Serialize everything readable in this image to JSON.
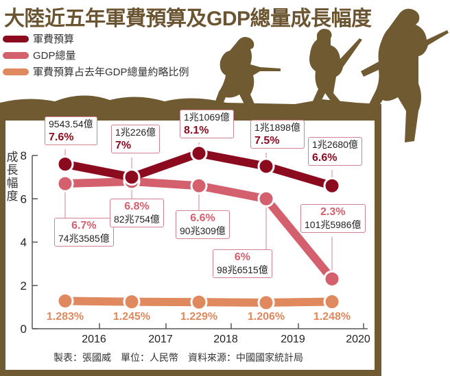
{
  "title": "大陸近五年軍費預算及GDP總量成長幅度",
  "footer": "製表：張國威　單位：人民幣　資料來源：中國國家統計局",
  "colors": {
    "military": "#8b0a1e",
    "gdp": "#d4606e",
    "ratio": "#e0895e",
    "brown": "#6f5a32"
  },
  "chart_data": {
    "type": "line",
    "ylabel": "成長幅度",
    "ylim": [
      0,
      8
    ],
    "yticks": [
      "0",
      "2",
      "4",
      "6",
      "8"
    ],
    "xticks": [
      "2016",
      "2017",
      "2018",
      "2019",
      "2020"
    ],
    "grid": false,
    "legend_placement": "top-left",
    "series": [
      {
        "name": "軍費預算",
        "values": [
          7.6,
          7,
          8.1,
          7.5,
          6.6
        ],
        "labels": [
          "7.6%",
          "7%",
          "8.1%",
          "7.5%",
          "6.6%"
        ],
        "amounts": [
          "9543.54億",
          "1兆226億",
          "1兆1069億",
          "1兆1898億",
          "1兆2680億"
        ]
      },
      {
        "name": "GDP總量",
        "values": [
          6.7,
          6.8,
          6.6,
          6,
          2.3
        ],
        "labels": [
          "6.7%",
          "6.8%",
          "6.6%",
          "6%",
          "2.3%"
        ],
        "amounts": [
          "74兆3585億",
          "82兆754億",
          "90兆309億",
          "98兆6515億",
          "101兆5986億"
        ]
      },
      {
        "name": "軍費預算占去年GDP總量約略比例",
        "values": [
          1.283,
          1.245,
          1.229,
          1.206,
          1.248
        ],
        "labels": [
          "1.283%",
          "1.245%",
          "1.229%",
          "1.206%",
          "1.248%"
        ]
      }
    ]
  }
}
